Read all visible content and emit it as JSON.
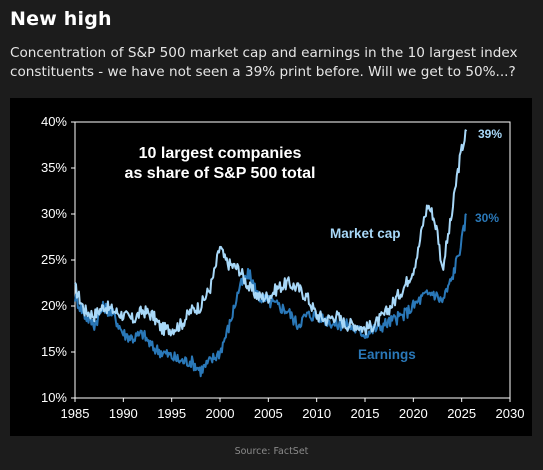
{
  "header": {
    "title": "New high",
    "subtitle": "Concentration of S&P 500 market cap and earnings in the 10 largest index constituents - we have not seen a 39% print before. Will we get to 50%...?"
  },
  "footer": {
    "source": "Source: FactSet"
  },
  "colors": {
    "page_background": "#1c1c1c",
    "chart_background": "#000000",
    "market_cap": "#a8d8f8",
    "earnings": "#2a78b8"
  },
  "chart_data": {
    "type": "line",
    "title_line1": "10 largest companies",
    "title_line2": "as share of S&P 500 total",
    "xlabel": "",
    "ylabel": "",
    "xlim": [
      1985,
      2030
    ],
    "ylim": [
      10,
      40
    ],
    "x_ticks": [
      "1985",
      "1990",
      "1995",
      "2000",
      "2005",
      "2010",
      "2015",
      "2020",
      "2025",
      "2030"
    ],
    "y_ticks": [
      "10%",
      "15%",
      "20%",
      "25%",
      "30%",
      "35%",
      "40%"
    ],
    "grid": false,
    "series": [
      {
        "name": "Market cap",
        "end_label": "39%",
        "x": [
          1985,
          1986,
          1987,
          1988,
          1989,
          1990,
          1991,
          1992,
          1993,
          1994,
          1995,
          1996,
          1997,
          1998,
          1999,
          1999.5,
          2000,
          2000.5,
          2001,
          2002,
          2003,
          2004,
          2005,
          2006,
          2007,
          2008,
          2009,
          2010,
          2011,
          2012,
          2013,
          2014,
          2015,
          2016,
          2017,
          2018,
          2019,
          2020,
          2020.5,
          2021,
          2021.5,
          2022,
          2022.5,
          2023,
          2023.5,
          2024,
          2024.5,
          2025,
          2025.5
        ],
        "values": [
          22,
          19.5,
          19,
          20,
          19.5,
          19,
          18.5,
          19.5,
          19,
          17.5,
          17.5,
          18,
          19.5,
          20,
          22,
          24,
          26.5,
          25,
          24.5,
          24,
          22,
          21,
          21,
          22,
          22.5,
          22,
          21,
          19,
          18.5,
          19,
          18,
          18,
          17.5,
          18,
          19,
          20.5,
          22,
          24,
          26,
          29,
          31,
          30,
          28,
          24,
          27,
          30,
          34,
          37,
          39
        ]
      },
      {
        "name": "Earnings",
        "end_label": "30%",
        "x": [
          1985,
          1986,
          1987,
          1988,
          1989,
          1990,
          1991,
          1992,
          1993,
          1994,
          1995,
          1996,
          1997,
          1998,
          1999,
          2000,
          2001,
          2002,
          2003,
          2004,
          2005,
          2006,
          2007,
          2008,
          2009,
          2010,
          2011,
          2012,
          2013,
          2014,
          2015,
          2016,
          2017,
          2018,
          2019,
          2020,
          2021,
          2022,
          2023,
          2024,
          2025,
          2025.5
        ],
        "values": [
          21,
          19,
          18,
          20,
          19,
          17,
          16.5,
          17,
          15.5,
          15,
          14.5,
          14,
          14,
          13,
          14,
          15,
          18,
          22,
          23.5,
          21,
          20.5,
          20,
          19.5,
          18,
          19,
          19,
          18.5,
          18,
          18,
          17.5,
          17,
          17.5,
          18,
          18.5,
          19,
          20,
          21,
          21.5,
          20.5,
          23,
          27,
          30
        ]
      }
    ]
  }
}
